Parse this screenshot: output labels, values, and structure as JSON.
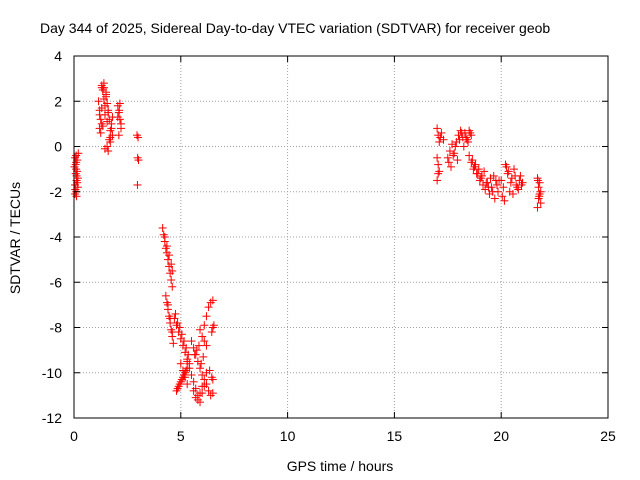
{
  "chart_data": {
    "type": "scatter",
    "title": "Day 344 of 2025, Sidereal Day-to-day VTEC variation (SDTVAR) for receiver geob",
    "xlabel": "GPS time / hours",
    "ylabel": "SDTVAR / TECUs",
    "xlim": [
      0,
      25
    ],
    "ylim": [
      -12,
      4
    ],
    "xticks": [
      0,
      5,
      10,
      15,
      20,
      25
    ],
    "yticks": [
      4,
      2,
      0,
      -2,
      -4,
      -6,
      -8,
      -10,
      -12
    ],
    "grid": true,
    "marker": "+",
    "color": "#ff0000",
    "series": [
      {
        "name": "SDTVAR",
        "x": [
          0.05,
          0.08,
          0.1,
          0.12,
          0.15,
          0.18,
          0.05,
          0.1,
          0.15,
          0.2,
          0.08,
          0.12,
          0.02,
          0.1,
          0.15,
          0.06,
          0.1,
          0.18,
          0.12,
          0.05,
          1.15,
          1.2,
          1.25,
          1.3,
          1.35,
          1.4,
          1.45,
          1.5,
          1.2,
          1.3,
          1.4,
          1.5,
          1.55,
          1.6,
          1.65,
          1.7,
          1.75,
          1.8,
          1.6,
          1.7,
          1.8,
          1.25,
          1.35,
          1.45,
          1.55,
          1.65,
          1.75,
          1.3,
          1.4,
          1.5,
          1.6,
          1.7,
          1.45,
          1.55,
          1.2,
          1.3,
          2.05,
          2.1,
          2.15,
          2.2,
          2.1,
          2.15,
          2.2,
          2.05,
          2.12,
          2.95,
          3.0,
          2.98,
          3.02,
          2.97,
          4.15,
          4.2,
          4.25,
          4.3,
          4.35,
          4.4,
          4.45,
          4.5,
          4.55,
          4.6,
          4.25,
          4.35,
          4.45,
          4.55,
          4.6,
          4.3,
          4.35,
          4.4,
          4.45,
          4.5,
          4.55,
          4.6,
          4.65,
          4.4,
          4.5,
          4.6,
          4.7,
          4.8,
          4.9,
          5.0,
          5.1,
          5.2,
          5.3,
          4.75,
          4.85,
          4.95,
          5.05,
          5.15,
          5.25,
          5.35,
          5.0,
          5.1,
          5.2,
          5.3,
          4.8,
          4.9,
          5.0,
          5.1,
          5.2,
          5.3,
          5.4,
          4.85,
          4.95,
          5.05,
          5.15,
          5.25,
          5.3,
          5.4,
          5.5,
          5.6,
          5.7,
          5.8,
          5.9,
          6.0,
          6.1,
          5.5,
          5.6,
          5.7,
          5.8,
          5.9,
          6.0,
          5.6,
          5.7,
          5.8,
          5.9,
          6.0,
          6.1,
          6.2,
          5.65,
          5.75,
          5.85,
          5.95,
          6.05,
          6.1,
          6.2,
          6.3,
          6.4,
          6.5,
          6.5,
          6.45,
          6.55,
          6.2,
          6.3,
          6.4,
          6.5,
          6.45,
          6.35,
          6.5,
          5.9,
          6.0,
          6.1,
          6.2,
          17.0,
          17.05,
          17.1,
          17.15,
          17.2,
          17.3,
          17.0,
          17.05,
          17.1,
          17.0,
          17.05,
          17.5,
          17.6,
          17.7,
          17.8,
          17.9,
          18.0,
          18.1,
          18.2,
          18.3,
          18.4,
          18.5,
          18.6,
          17.55,
          17.65,
          17.75,
          17.85,
          17.95,
          18.05,
          18.15,
          18.25,
          18.35,
          18.45,
          18.55,
          18.5,
          18.6,
          18.7,
          18.8,
          18.9,
          19.0,
          19.1,
          19.2,
          19.3,
          19.4,
          19.5,
          19.6,
          19.7,
          19.8,
          19.9,
          18.65,
          18.75,
          18.85,
          18.95,
          19.05,
          19.15,
          19.25,
          19.35,
          19.45,
          19.55,
          19.65,
          19.75,
          19.85,
          20.0,
          20.1,
          20.2,
          20.3,
          20.4,
          20.5,
          20.6,
          20.7,
          20.8,
          20.9,
          21.0,
          20.05,
          20.15,
          20.25,
          20.35,
          20.45,
          20.55,
          20.65,
          20.75,
          20.85,
          20.95,
          21.7,
          21.75,
          21.8,
          21.85,
          21.7,
          21.75,
          21.8,
          21.85,
          21.72,
          21.78
        ],
        "y": [
          -0.5,
          -0.8,
          -1.0,
          -1.3,
          -1.6,
          -1.8,
          -2.1,
          -2.0,
          -0.6,
          -0.3,
          -1.2,
          -1.5,
          -0.9,
          -0.4,
          -1.1,
          -1.9,
          -0.7,
          -1.4,
          -2.2,
          -1.7,
          2.0,
          1.6,
          1.2,
          2.7,
          2.5,
          2.8,
          1.8,
          2.2,
          0.8,
          1.0,
          2.6,
          2.4,
          1.9,
          1.5,
          1.2,
          0.7,
          1.0,
          1.3,
          -0.2,
          0.2,
          0.5,
          0.6,
          0.9,
          1.4,
          0.0,
          0.3,
          0.8,
          1.7,
          2.1,
          2.3,
          1.6,
          0.4,
          -0.1,
          1.1,
          1.4,
          2.6,
          1.8,
          1.5,
          1.2,
          0.8,
          0.5,
          1.9,
          1.0,
          1.3,
          1.6,
          0.5,
          0.4,
          -0.5,
          -0.6,
          -1.7,
          -3.6,
          -3.9,
          -4.2,
          -4.5,
          -4.7,
          -5.0,
          -5.3,
          -5.6,
          -5.9,
          -6.2,
          -4.0,
          -4.4,
          -4.8,
          -5.2,
          -5.5,
          -6.6,
          -6.9,
          -7.2,
          -7.5,
          -7.8,
          -8.1,
          -8.4,
          -8.7,
          -7.0,
          -7.6,
          -8.2,
          -7.6,
          -7.9,
          -8.2,
          -8.5,
          -8.8,
          -9.1,
          -9.4,
          -7.4,
          -7.8,
          -8.0,
          -8.3,
          -8.6,
          -8.9,
          -9.2,
          -9.6,
          -9.9,
          -10.2,
          -10.5,
          -10.8,
          -10.6,
          -10.4,
          -10.2,
          -10.0,
          -9.8,
          -9.6,
          -10.7,
          -10.5,
          -10.3,
          -10.1,
          -9.9,
          -9.5,
          -9.8,
          -10.1,
          -10.4,
          -10.7,
          -11.0,
          -11.3,
          -10.9,
          -10.6,
          -8.6,
          -8.9,
          -9.2,
          -9.5,
          -9.8,
          -10.1,
          -10.8,
          -11.1,
          -11.2,
          -10.9,
          -10.6,
          -10.3,
          -10.0,
          -9.2,
          -9.0,
          -8.8,
          -9.6,
          -9.3,
          -7.9,
          -7.5,
          -7.1,
          -6.9,
          -6.8,
          -8.0,
          -8.2,
          -7.9,
          -10.5,
          -10.8,
          -11.0,
          -10.9,
          -10.2,
          -9.9,
          -10.3,
          -8.1,
          -8.4,
          -8.6,
          -8.8,
          0.8,
          0.5,
          0.2,
          0.4,
          0.6,
          0.3,
          -0.5,
          -0.8,
          -1.1,
          -1.5,
          -1.2,
          -0.5,
          -0.2,
          0.1,
          -0.3,
          0.2,
          0.5,
          0.7,
          0.4,
          0.6,
          0.3,
          0.7,
          0.5,
          -0.7,
          -0.9,
          -0.4,
          0.0,
          -0.6,
          0.3,
          0.6,
          0.0,
          0.4,
          0.2,
          0.6,
          -0.4,
          -0.7,
          -1.0,
          -0.8,
          -1.2,
          -1.5,
          -1.3,
          -1.1,
          -1.6,
          -1.8,
          -1.4,
          -2.0,
          -2.3,
          -1.7,
          -1.5,
          -0.6,
          -0.9,
          -1.2,
          -1.0,
          -1.4,
          -1.7,
          -1.9,
          -1.6,
          -2.1,
          -1.8,
          -1.3,
          -1.5,
          -2.0,
          -1.5,
          -1.8,
          -0.8,
          -1.2,
          -2.0,
          -1.4,
          -1.0,
          -1.7,
          -1.9,
          -1.3,
          -1.6,
          -2.2,
          -2.4,
          -0.9,
          -1.1,
          -1.6,
          -2.1,
          -1.3,
          -1.8,
          -1.5,
          -1.7,
          -1.4,
          -1.8,
          -2.1,
          -2.5,
          -2.7,
          -2.3,
          -1.6,
          -2.0,
          -1.5,
          -2.2
        ]
      }
    ]
  }
}
